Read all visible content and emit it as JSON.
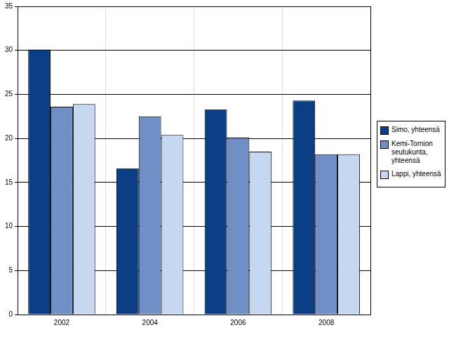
{
  "chart_data": {
    "type": "bar",
    "categories": [
      "2002",
      "2004",
      "2006",
      "2008"
    ],
    "series": [
      {
        "name": "Simo, yhteensä",
        "color": "#0a3f85",
        "values": [
          30.1,
          16.6,
          23.3,
          24.3
        ]
      },
      {
        "name": "Kemi-Tornion seutukunta, yhteensä",
        "color": "#6f8fc6",
        "values": [
          23.6,
          22.5,
          20.1,
          18.2
        ]
      },
      {
        "name": "Lappi, yhteensä",
        "color": "#c6d7f0",
        "values": [
          23.9,
          20.4,
          18.5,
          18.2
        ]
      }
    ],
    "ylim": [
      0,
      35
    ],
    "yticks": [
      0,
      5,
      10,
      15,
      20,
      25,
      30,
      35
    ],
    "grid": true,
    "legend": "right"
  }
}
